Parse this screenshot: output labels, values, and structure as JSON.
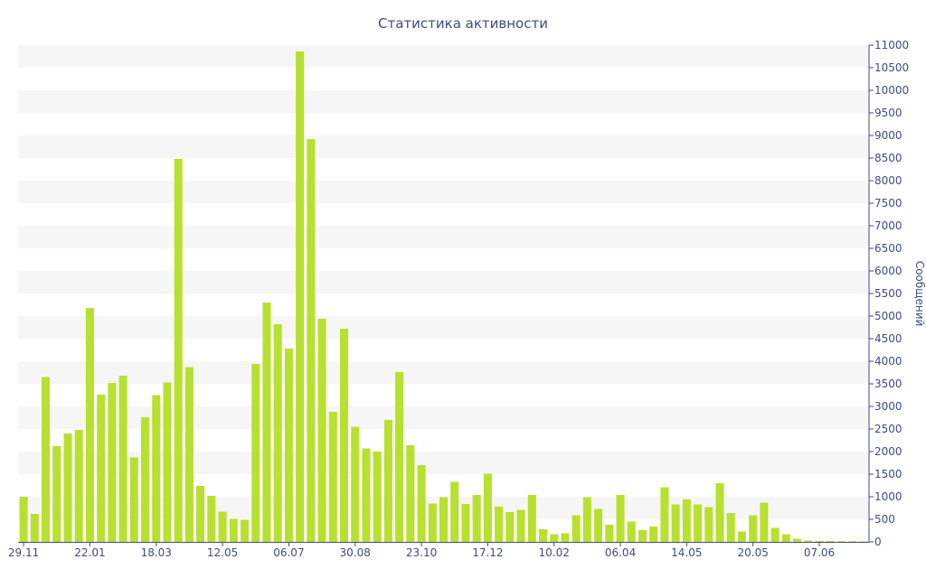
{
  "chart_data": {
    "type": "bar",
    "title": "Статистика активности",
    "ylabel": "Сообщений",
    "ylim": [
      0,
      11000
    ],
    "y_axis_position": "right",
    "y_ticks": [
      0,
      500,
      1000,
      1500,
      2000,
      2500,
      3000,
      3500,
      4000,
      4500,
      5000,
      5500,
      6000,
      6500,
      7000,
      7500,
      8000,
      8500,
      9000,
      9500,
      10000,
      10500,
      11000
    ],
    "x_tick_labels": [
      {
        "label": "29.11",
        "index": 0
      },
      {
        "label": "22.01",
        "index": 6
      },
      {
        "label": "18.03",
        "index": 12
      },
      {
        "label": "12.05",
        "index": 18
      },
      {
        "label": "06.07",
        "index": 24
      },
      {
        "label": "30.08",
        "index": 30
      },
      {
        "label": "23.10",
        "index": 36
      },
      {
        "label": "17.12",
        "index": 42
      },
      {
        "label": "10.02",
        "index": 48
      },
      {
        "label": "06.04",
        "index": 54
      },
      {
        "label": "14.05",
        "index": 60
      },
      {
        "label": "20.05",
        "index": 66
      },
      {
        "label": "07.06",
        "index": 72
      }
    ],
    "grid": "alternating horizontal bands",
    "bar_color": "#b8e030",
    "values": [
      1000,
      620,
      3650,
      2120,
      2400,
      2480,
      5180,
      3260,
      3520,
      3680,
      1870,
      2760,
      3250,
      3530,
      8480,
      3870,
      1240,
      1020,
      670,
      510,
      490,
      3940,
      5300,
      4820,
      4280,
      10860,
      8920,
      4940,
      2880,
      4720,
      2550,
      2070,
      2000,
      2700,
      3760,
      2140,
      1700,
      850,
      990,
      1330,
      840,
      1040,
      1510,
      780,
      660,
      710,
      1040,
      280,
      170,
      190,
      590,
      990,
      730,
      380,
      1040,
      450,
      260,
      340,
      1210,
      830,
      940,
      830,
      770,
      1300,
      640,
      230,
      590,
      870,
      310,
      170,
      70,
      30,
      20,
      20,
      15,
      15,
      10
    ]
  }
}
